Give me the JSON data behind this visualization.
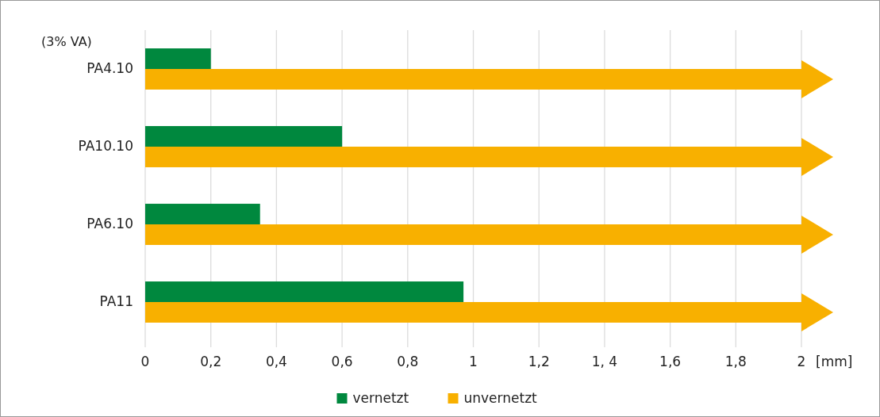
{
  "chart_data": {
    "type": "bar",
    "orientation": "horizontal",
    "categories": [
      "PA4.10",
      "PA10.10",
      "PA6.10",
      "PA11"
    ],
    "series": [
      {
        "name": "vernetzt",
        "color": "#00883e",
        "values": [
          0.2,
          0.6,
          0.35,
          0.97
        ]
      },
      {
        "name": "unvernetzt",
        "color": "#f8b000",
        "values": [
          2,
          2,
          2,
          2
        ]
      }
    ],
    "xlim": [
      0,
      2
    ],
    "xticks": [
      0,
      {
        "value": 0.2,
        "label": "0,2"
      },
      {
        "value": 0.4,
        "label": "0,4"
      },
      {
        "value": 0.6,
        "label": "0,6"
      },
      {
        "value": 0.8,
        "label": "0,8"
      },
      1,
      {
        "value": 1.2,
        "label": "1,2"
      },
      {
        "value": 1.4,
        "label": "1, 4"
      },
      {
        "value": 1.6,
        "label": "1,6"
      },
      {
        "value": 1.8,
        "label": "1,8"
      },
      2
    ],
    "xlabel": "[mm]",
    "annotations": [
      "(3% VA)"
    ],
    "grid": "x",
    "legend": "bottom"
  }
}
